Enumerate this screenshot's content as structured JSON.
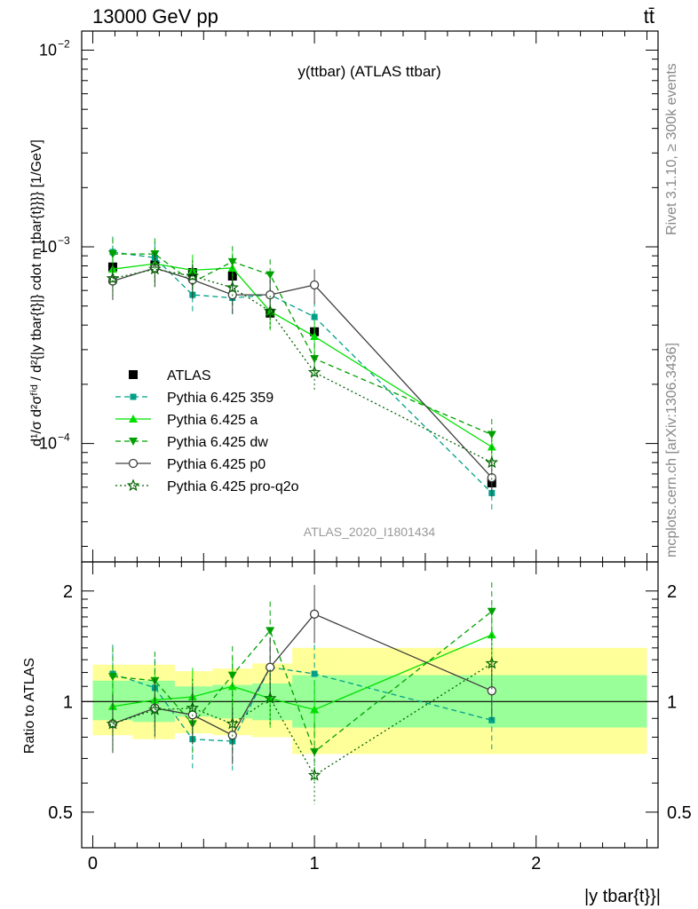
{
  "header": {
    "left": "13000 GeV pp",
    "right": "tt̄"
  },
  "side_labels": {
    "rivet": "Rivet 3.1.10, ≥ 300k events",
    "mcplots": "mcplots.cern.ch [arXiv:1306.3436]"
  },
  "analysis_id": "ATLAS_2020_I1801434",
  "chart_data": [
    {
      "panel": "main",
      "type": "scatter",
      "title": "y(ttbar) (ATLAS ttbar)",
      "ylabel": "d¹/σ d²σᶠⁱᵈ / d²{|y tbar{t}|} cdot m tbar{t}}}} [1/GeV]",
      "ylog": true,
      "ylim": [
        2.5e-05,
        0.0125
      ],
      "xlim": [
        -0.05,
        2.55
      ],
      "x": [
        0.09,
        0.28,
        0.45,
        0.63,
        0.8,
        1.0,
        1.8
      ],
      "x_edges": [
        0.0,
        0.18,
        0.37,
        0.54,
        0.72,
        0.9,
        1.1,
        2.5
      ],
      "series": [
        {
          "name": "ATLAS",
          "color": "#000000",
          "marker": "square",
          "line": "none",
          "values": [
            0.00079,
            0.00081,
            0.00074,
            0.00071,
            0.00046,
            0.00037,
            6.3e-05
          ]
        },
        {
          "name": "Pythia 6.425 359",
          "color": "#00a088",
          "marker": "square-small",
          "line": "dashed",
          "values": [
            0.00094,
            0.00088,
            0.00057,
            0.00055,
            0.00057,
            0.00044,
            5.6e-05
          ]
        },
        {
          "name": "Pythia 6.425 a",
          "color": "#00e000",
          "marker": "triangle-up",
          "line": "solid",
          "values": [
            0.00077,
            0.00082,
            0.00076,
            0.00078,
            0.00047,
            0.00035,
            9.6e-05
          ]
        },
        {
          "name": "Pythia 6.425 dw",
          "color": "#00a000",
          "marker": "triangle-down",
          "line": "dashed",
          "values": [
            0.00092,
            0.00092,
            0.00066,
            0.00084,
            0.00072,
            0.00027,
            0.000111
          ]
        },
        {
          "name": "Pythia 6.425 p0",
          "color": "#404040",
          "marker": "circle-open",
          "line": "solid",
          "values": [
            0.00067,
            0.00078,
            0.00068,
            0.00057,
            0.00057,
            0.00064,
            6.7e-05
          ]
        },
        {
          "name": "Pythia 6.425 pro-q2o",
          "color": "#006400",
          "marker": "star-open",
          "line": "dotted",
          "values": [
            0.00069,
            0.00077,
            0.00071,
            0.00062,
            0.00047,
            0.00023,
            8e-05
          ]
        }
      ]
    },
    {
      "panel": "ratio",
      "type": "scatter",
      "ylabel": "Ratio to ATLAS",
      "ylog": true,
      "ylim": [
        0.4,
        2.4
      ],
      "xlabel": "|y tbar{t}}|",
      "xlim": [
        -0.05,
        2.55
      ],
      "x": [
        0.09,
        0.28,
        0.45,
        0.63,
        0.8,
        1.0,
        1.8
      ],
      "band_inner": [
        [
          0.89,
          1.14
        ],
        [
          0.88,
          1.14
        ],
        [
          0.91,
          1.1
        ],
        [
          0.9,
          1.11
        ],
        [
          0.89,
          1.12
        ],
        [
          0.85,
          1.18
        ],
        [
          0.85,
          1.18
        ]
      ],
      "band_outer": [
        [
          0.81,
          1.26
        ],
        [
          0.79,
          1.26
        ],
        [
          0.82,
          1.21
        ],
        [
          0.81,
          1.23
        ],
        [
          0.8,
          1.27
        ],
        [
          0.72,
          1.4
        ],
        [
          0.72,
          1.4
        ]
      ],
      "series": [
        {
          "name": "Pythia 6.425 359",
          "values": [
            1.19,
            1.09,
            0.79,
            0.78,
            1.24,
            1.19,
            0.89
          ]
        },
        {
          "name": "Pythia 6.425 a",
          "values": [
            0.97,
            1.01,
            1.03,
            1.1,
            1.02,
            0.95,
            1.52
          ]
        },
        {
          "name": "Pythia 6.425 dw",
          "values": [
            1.17,
            1.14,
            0.87,
            1.18,
            1.56,
            0.73,
            1.76
          ]
        },
        {
          "name": "Pythia 6.425 p0",
          "values": [
            0.87,
            0.96,
            0.92,
            0.81,
            1.24,
            1.73,
            1.07
          ]
        },
        {
          "name": "Pythia 6.425 pro-q2o",
          "values": [
            0.87,
            0.95,
            0.96,
            0.87,
            1.02,
            0.63,
            1.27
          ]
        }
      ]
    }
  ]
}
